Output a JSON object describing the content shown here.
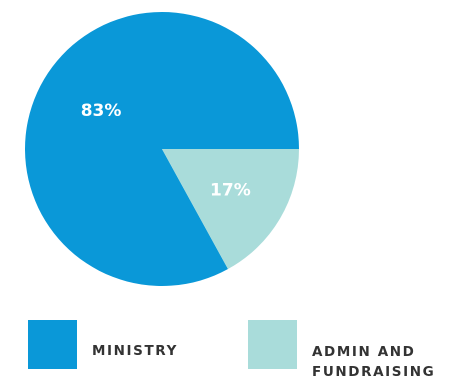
{
  "chart_data": {
    "type": "pie",
    "slices": [
      {
        "name": "MINISTRY",
        "value": 83,
        "label": "83%",
        "color": "#0a98d8"
      },
      {
        "name": "ADMIN AND FUNDRAISING",
        "value": 17,
        "label": "17%",
        "color": "#a9dcda"
      }
    ],
    "legend_placement": "bottom"
  },
  "legend": {
    "items": [
      {
        "label": "MINISTRY",
        "color": "#0a98d8"
      },
      {
        "label": "ADMIN AND FUNDRAISING",
        "color": "#a9dcda"
      }
    ]
  }
}
